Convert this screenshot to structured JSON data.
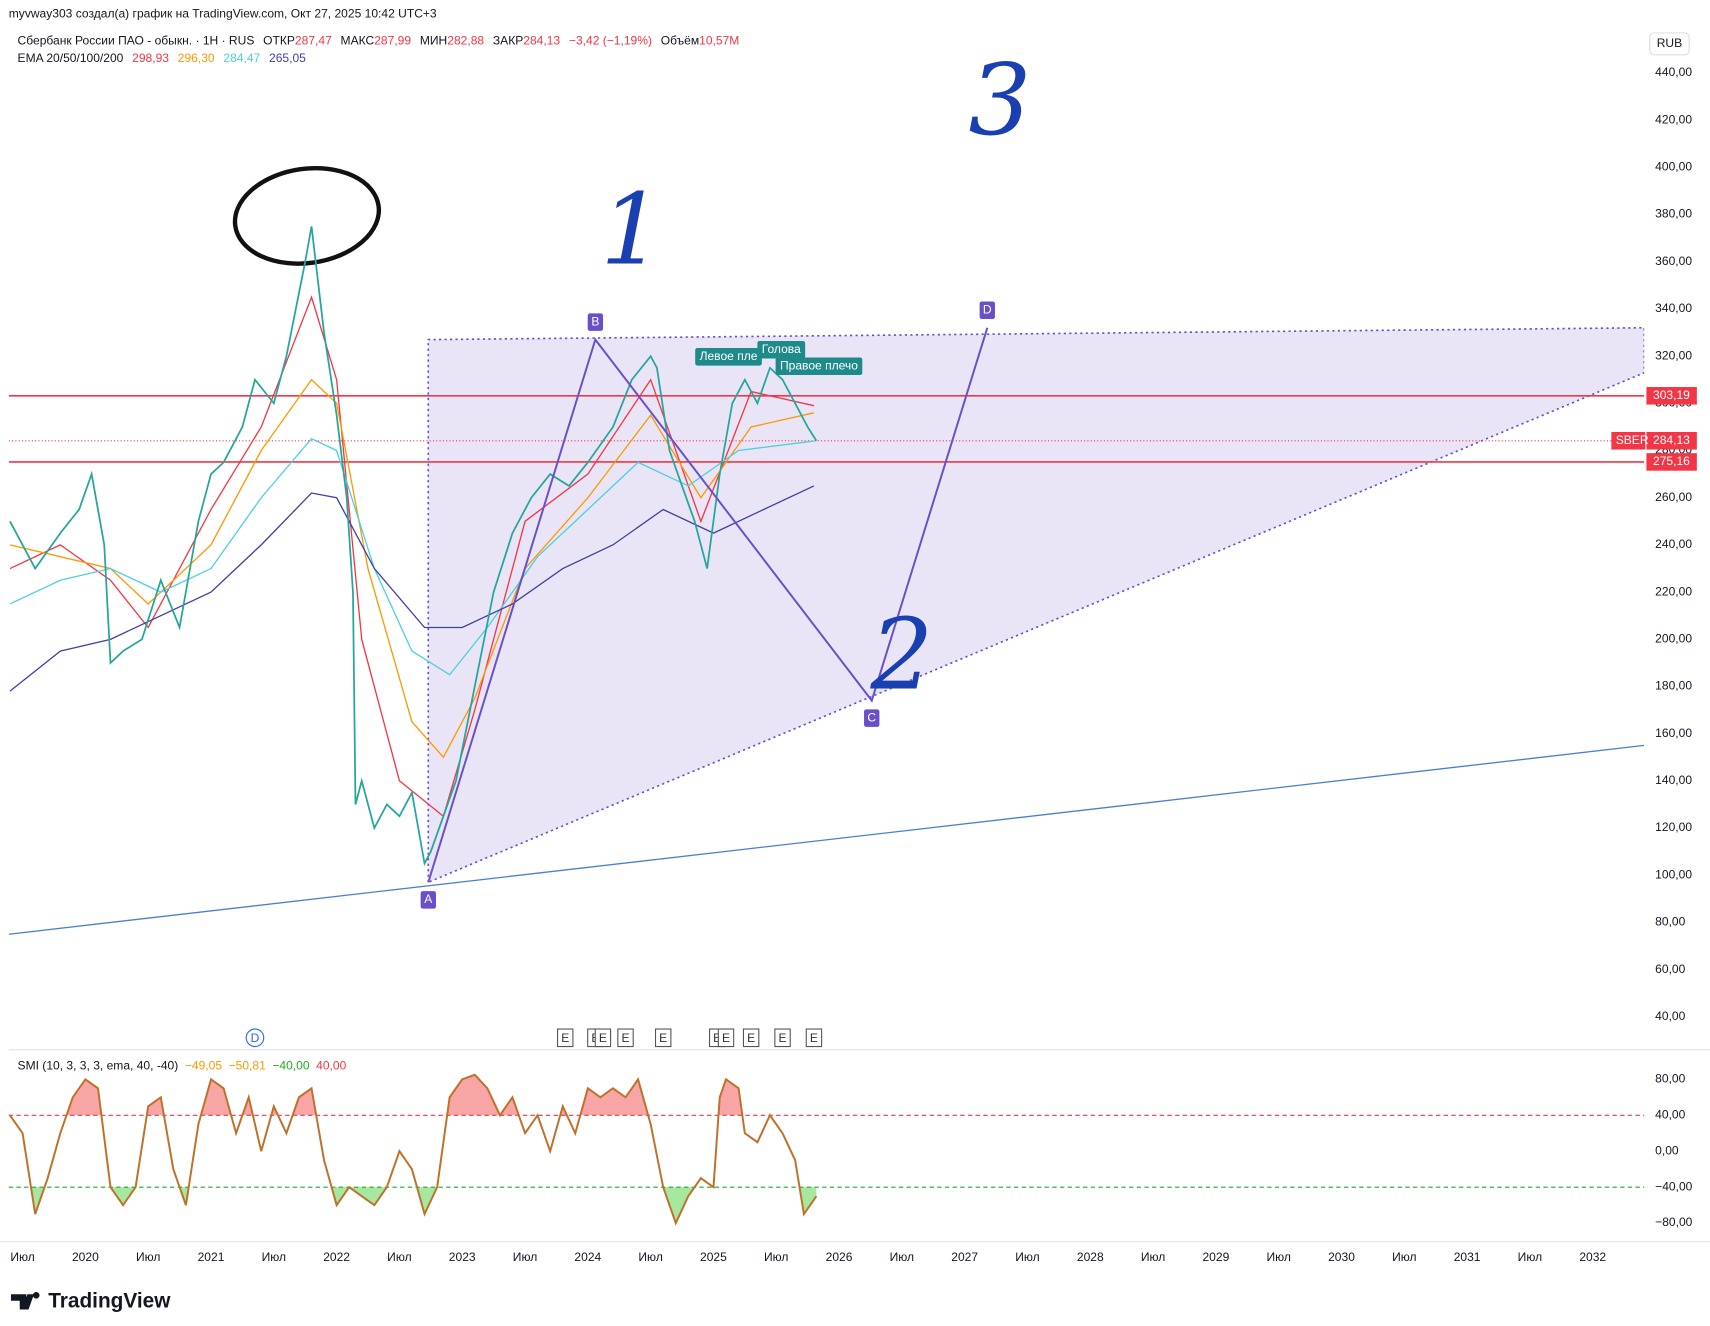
{
  "chart_data": {
    "type": "line",
    "credit": "myvway303 создал(а) график на TradingView.com, Окт 27, 2025 10:42 UTC+3",
    "symbol_title": "Сбербанк России ПАО - обыкн. · 1H · RUS",
    "ohlc": [
      {
        "label": "ОТКР",
        "value": "287,47"
      },
      {
        "label": "МАКС",
        "value": "287,99"
      },
      {
        "label": "МИН",
        "value": "282,88"
      },
      {
        "label": "ЗАКР",
        "value": "284,13"
      }
    ],
    "change": "−3,42 (−1,19%)",
    "volume": {
      "label": "Объём",
      "value": "10,57M"
    },
    "currency": "RUB",
    "brand": "TradingView",
    "xlim": [
      2019.39,
      2032.41
    ],
    "xticks": [
      {
        "value": 2019.5,
        "label": "Июл"
      },
      2020,
      {
        "value": 2020.5,
        "label": "Июл"
      },
      2021,
      {
        "value": 2021.5,
        "label": "Июл"
      },
      2022,
      {
        "value": 2022.5,
        "label": "Июл"
      },
      2023,
      {
        "value": 2023.5,
        "label": "Июл"
      },
      2024,
      {
        "value": 2024.5,
        "label": "Июл"
      },
      2025,
      {
        "value": 2025.5,
        "label": "Июл"
      },
      2026,
      {
        "value": 2026.5,
        "label": "Июл"
      },
      2027,
      {
        "value": 2027.5,
        "label": "Июл"
      },
      2028,
      {
        "value": 2028.5,
        "label": "Июл"
      },
      2029,
      {
        "value": 2029.5,
        "label": "Июл"
      },
      2030,
      {
        "value": 2030.5,
        "label": "Июл"
      },
      2031,
      {
        "value": 2031.5,
        "label": "Июл"
      },
      2032
    ],
    "ylim": [
      26,
      457
    ],
    "yticks": [
      {
        "value": 40,
        "label": "40,00"
      },
      {
        "value": 60,
        "label": "60,00"
      },
      {
        "value": 80,
        "label": "80,00"
      },
      {
        "value": 100,
        "label": "100,00"
      },
      {
        "value": 120,
        "label": "120,00"
      },
      {
        "value": 140,
        "label": "140,00"
      },
      {
        "value": 160,
        "label": "160,00"
      },
      {
        "value": 180,
        "label": "180,00"
      },
      {
        "value": 200,
        "label": "200,00"
      },
      {
        "value": 220,
        "label": "220,00"
      },
      {
        "value": 240,
        "label": "240,00"
      },
      {
        "value": 260,
        "label": "260,00"
      },
      {
        "value": 280,
        "label": "280,00"
      },
      {
        "value": 300,
        "label": "300,00"
      },
      {
        "value": 320,
        "label": "320,00"
      },
      {
        "value": 340,
        "label": "340,00"
      },
      {
        "value": 360,
        "label": "360,00"
      },
      {
        "value": 380,
        "label": "380,00"
      },
      {
        "value": 400,
        "label": "400,00"
      },
      {
        "value": 420,
        "label": "420,00"
      },
      {
        "value": 440,
        "label": "440,00"
      }
    ],
    "price": {
      "color": "#26a69a",
      "x": [
        2019.4,
        2019.6,
        2019.8,
        2019.95,
        2020.05,
        2020.15,
        2020.2,
        2020.3,
        2020.45,
        2020.6,
        2020.75,
        2020.9,
        2021.0,
        2021.1,
        2021.25,
        2021.35,
        2021.5,
        2021.6,
        2021.75,
        2021.8,
        2021.9,
        2022.0,
        2022.08,
        2022.13,
        2022.15,
        2022.2,
        2022.3,
        2022.4,
        2022.5,
        2022.6,
        2022.7,
        2022.75,
        2022.85,
        2022.95,
        2023.1,
        2023.25,
        2023.4,
        2023.55,
        2023.7,
        2023.85,
        2024.0,
        2024.2,
        2024.35,
        2024.5,
        2024.55,
        2024.65,
        2024.75,
        2024.85,
        2024.95,
        2025.05,
        2025.15,
        2025.25,
        2025.35,
        2025.45,
        2025.55,
        2025.65,
        2025.75,
        2025.82
      ],
      "values": [
        250,
        230,
        245,
        255,
        270,
        240,
        190,
        195,
        200,
        225,
        205,
        250,
        270,
        275,
        290,
        310,
        300,
        320,
        360,
        375,
        330,
        295,
        260,
        220,
        130,
        140,
        120,
        130,
        125,
        135,
        105,
        110,
        125,
        140,
        180,
        220,
        245,
        260,
        270,
        265,
        275,
        290,
        310,
        320,
        315,
        280,
        265,
        250,
        230,
        270,
        300,
        310,
        300,
        315,
        310,
        300,
        290,
        284.13
      ]
    },
    "ema_title": "EMA 20/50/100/200",
    "series": [
      {
        "name": "298,93",
        "color": "#f23645",
        "x": [
          2019.4,
          2019.8,
          2020.2,
          2020.5,
          2021.0,
          2021.4,
          2021.8,
          2022.0,
          2022.2,
          2022.5,
          2022.85,
          2023.1,
          2023.5,
          2024.0,
          2024.5,
          2024.9,
          2025.3,
          2025.8
        ],
        "values": [
          230,
          240,
          225,
          205,
          255,
          290,
          345,
          310,
          200,
          140,
          125,
          170,
          250,
          270,
          310,
          250,
          305,
          299
        ]
      },
      {
        "name": "296,30",
        "color": "#ff9800",
        "x": [
          2019.4,
          2019.8,
          2020.2,
          2020.5,
          2021.0,
          2021.4,
          2021.8,
          2022.0,
          2022.25,
          2022.6,
          2022.85,
          2023.1,
          2023.5,
          2024.0,
          2024.5,
          2024.9,
          2025.3,
          2025.8
        ],
        "values": [
          240,
          235,
          230,
          215,
          240,
          280,
          310,
          300,
          230,
          165,
          150,
          175,
          230,
          260,
          295,
          260,
          290,
          296
        ]
      },
      {
        "name": "284,47",
        "color": "#4dd0e1",
        "x": [
          2019.4,
          2019.8,
          2020.2,
          2020.6,
          2021.0,
          2021.4,
          2021.8,
          2022.0,
          2022.3,
          2022.6,
          2022.9,
          2023.2,
          2023.6,
          2024.0,
          2024.4,
          2024.8,
          2025.2,
          2025.8
        ],
        "values": [
          215,
          225,
          230,
          220,
          230,
          260,
          285,
          280,
          230,
          195,
          185,
          205,
          235,
          255,
          275,
          265,
          280,
          284
        ]
      },
      {
        "name": "265,05",
        "color": "#3f3fa8",
        "x": [
          2019.4,
          2019.8,
          2020.2,
          2020.6,
          2021.0,
          2021.4,
          2021.8,
          2022.0,
          2022.3,
          2022.7,
          2023.0,
          2023.4,
          2023.8,
          2024.2,
          2024.6,
          2025.0,
          2025.4,
          2025.8
        ],
        "values": [
          178,
          195,
          200,
          210,
          220,
          240,
          262,
          260,
          230,
          205,
          205,
          215,
          230,
          240,
          255,
          245,
          255,
          265
        ]
      }
    ],
    "levels": [
      {
        "value": 303.19,
        "label": "303,19",
        "color": "#f23645"
      },
      {
        "value": 275.16,
        "label": "275,16",
        "color": "#f23645"
      }
    ],
    "last_price": {
      "value": 284.13,
      "label": "284,13",
      "symbol": "SBER",
      "color": "#f23645"
    },
    "trendline": {
      "color": "#4a7fd0",
      "x": [
        2019.39,
        2032.41
      ],
      "values": [
        75,
        155
      ]
    },
    "triangle": {
      "color": "#6a4fc9",
      "x": [
        2022.73,
        2022.73,
        2032.41,
        2032.41
      ],
      "values": [
        97,
        327,
        332,
        313
      ]
    },
    "pattern": {
      "color": "#6a4fc9",
      "labels": [
        "A",
        "B",
        "C",
        "D"
      ],
      "x": [
        2022.73,
        2024.06,
        2026.26,
        2027.18
      ],
      "values": [
        97,
        327,
        174,
        332
      ]
    },
    "head_shoulders": {
      "color": "#1e8a8a",
      "labels": [
        "Левое пле",
        "Голова",
        "Правое плечо"
      ],
      "x": [
        2025.12,
        2025.54,
        2025.84
      ],
      "values": [
        316,
        319,
        312
      ]
    },
    "annotations": {
      "color": "#1a3fb0",
      "labels": [
        "1",
        "2",
        "3"
      ],
      "x": [
        2024.35,
        2026.5,
        2027.28
      ],
      "values": [
        370,
        190,
        425
      ]
    },
    "events": {
      "labels": [
        "D",
        "E",
        "E",
        "E",
        "E",
        "E",
        "E",
        "E",
        "E",
        "E",
        "E"
      ],
      "x": [
        2021.35,
        2023.82,
        2024.06,
        2024.12,
        2024.3,
        2024.6,
        2025.03,
        2025.1,
        2025.3,
        2025.55,
        2025.8
      ]
    },
    "smi": {
      "title": "SMI (10, 3, 3, 3, ema, 40, -40)",
      "readings": [
        {
          "value": "−49,05",
          "color": "#ff9800"
        },
        {
          "value": "−50,81",
          "color": "#ff9800"
        },
        {
          "value": "−40,00",
          "color": "#22ab22"
        },
        {
          "value": "40,00",
          "color": "#f23645"
        }
      ],
      "ylim": [
        -97,
        108
      ],
      "yticks": [
        {
          "value": -80,
          "label": "−80,00"
        },
        {
          "value": -40,
          "label": "−40,00"
        },
        {
          "value": 0,
          "label": "0,00"
        },
        {
          "value": 40,
          "label": "40,00"
        },
        {
          "value": 80,
          "label": "80,00"
        }
      ],
      "upper": 40,
      "lower": -40,
      "color": "#c0702a",
      "x": [
        2019.4,
        2019.5,
        2019.6,
        2019.7,
        2019.8,
        2019.9,
        2020.0,
        2020.1,
        2020.2,
        2020.3,
        2020.4,
        2020.5,
        2020.6,
        2020.7,
        2020.8,
        2020.9,
        2021.0,
        2021.1,
        2021.2,
        2021.3,
        2021.4,
        2021.5,
        2021.6,
        2021.7,
        2021.8,
        2021.9,
        2022.0,
        2022.1,
        2022.2,
        2022.3,
        2022.4,
        2022.5,
        2022.6,
        2022.7,
        2022.8,
        2022.9,
        2023.0,
        2023.1,
        2023.2,
        2023.3,
        2023.4,
        2023.5,
        2023.6,
        2023.7,
        2023.8,
        2023.9,
        2024.0,
        2024.1,
        2024.2,
        2024.3,
        2024.4,
        2024.5,
        2024.6,
        2024.7,
        2024.8,
        2024.9,
        2025.0,
        2025.05,
        2025.1,
        2025.2,
        2025.25,
        2025.35,
        2025.45,
        2025.55,
        2025.65,
        2025.72,
        2025.82
      ],
      "values": [
        40,
        20,
        -70,
        -30,
        20,
        60,
        80,
        70,
        -40,
        -60,
        -40,
        50,
        60,
        -20,
        -60,
        30,
        80,
        70,
        20,
        60,
        0,
        50,
        20,
        60,
        70,
        -10,
        -60,
        -40,
        -50,
        -60,
        -40,
        0,
        -20,
        -70,
        -40,
        60,
        80,
        85,
        70,
        40,
        60,
        20,
        40,
        0,
        50,
        20,
        70,
        60,
        70,
        60,
        80,
        30,
        -40,
        -80,
        -50,
        -30,
        -40,
        60,
        80,
        70,
        20,
        10,
        40,
        20,
        -10,
        -70,
        -50
      ]
    }
  }
}
